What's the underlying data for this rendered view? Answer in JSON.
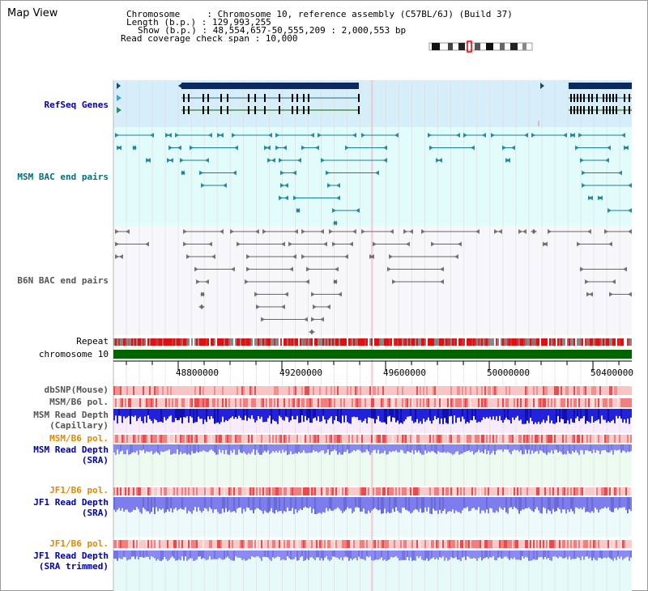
{
  "window": {
    "title": "Map View"
  },
  "info": {
    "chromosome_label": "Chromosome     : Chromosome 10, reference assembly (C57BL/6J) (Build 37)",
    "length_label": "Length (b.p.) : 129,993,255",
    "show_label": "Show (b.p.) : 48,554,657-50,555,209 : 2,000,553 bp",
    "coverage_label": "Read coverage check span : 10,000"
  },
  "tracks": {
    "refseq": {
      "label": "RefSeq Genes",
      "color": "#0000aa"
    },
    "msm_bac": {
      "label": "MSM BAC end pairs",
      "color": "#006e7e"
    },
    "b6n_bac": {
      "label": "B6N BAC end pairs",
      "color": "#555555"
    },
    "repeat": {
      "label": "Repeat"
    },
    "chromosome": {
      "label": "chromosome 10",
      "color": "#006400"
    },
    "dbsnp": {
      "label": "dbSNP(Mouse)",
      "color": "#555555"
    },
    "msm_b6_pol": {
      "label": "MSM/B6 pol.",
      "color": "#555555"
    },
    "msm_depth_cap": {
      "label_1": "MSM Read Depth",
      "label_2": "(Capillary)",
      "color": "#555555"
    },
    "msm_b6_pol_2": {
      "label": "MSM/B6 pol.",
      "color": "#e08a00"
    },
    "msm_depth_sra": {
      "label_1": "MSM Read Depth",
      "label_2": "(SRA)",
      "color": "#0000aa"
    },
    "jf1_b6_pol": {
      "label": "JF1/B6 pol.",
      "color": "#e08a00"
    },
    "jf1_depth_sra": {
      "label_1": "JF1 Read Depth",
      "label_2": "(SRA)",
      "color": "#0000aa"
    },
    "jf1_b6_pol_2": {
      "label": "JF1/B6 pol.",
      "color": "#e08a00"
    },
    "jf1_depth_trim": {
      "label_1": "JF1 Read Depth",
      "label_2": "(SRA trimmed)",
      "color": "#0000aa"
    }
  },
  "axis": {
    "ticks": [
      "48800000",
      "49200000",
      "49600000",
      "50000000",
      "50400000"
    ]
  }
}
